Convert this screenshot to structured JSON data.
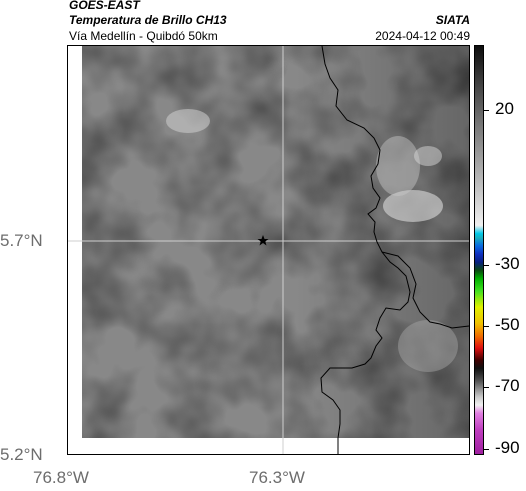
{
  "header": {
    "satellite": "GOES-EAST",
    "product": "Temperatura de Brillo CH13",
    "region": "Vía Medellín - Quibdó 50km",
    "org": "SIATA",
    "datetime": "2024-04-12 00:49"
  },
  "map": {
    "lat_labels": [
      "5.7°N",
      "5.2°N"
    ],
    "lon_labels": [
      "76.8°W",
      "76.3°W"
    ],
    "marker": "star-marker",
    "colors": {
      "cloud_gray": "#8a8a8a",
      "gridline": "#cfcfcf",
      "coastline": "#000000"
    }
  },
  "colorbar": {
    "labels": [
      "20",
      "-30",
      "-50",
      "-70",
      "-90"
    ]
  }
}
